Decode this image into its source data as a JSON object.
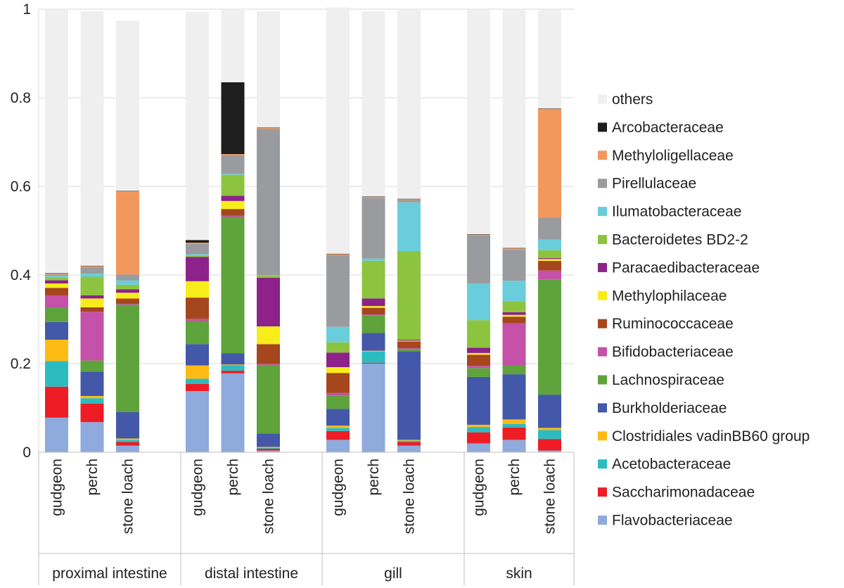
{
  "chart_data": {
    "type": "bar",
    "stacked": true,
    "title": "",
    "xlabel": "",
    "ylabel": "",
    "ylim": [
      0,
      1
    ],
    "yticks": [
      "0",
      "0.2",
      "0.4",
      "0.6",
      "0.8",
      "1"
    ],
    "grid": "horizontal",
    "legend_position": "right",
    "groups": [
      {
        "name": "proximal intestine",
        "categories": [
          "gudgeon",
          "perch",
          "stone loach"
        ]
      },
      {
        "name": "distal intestine",
        "categories": [
          "gudgeon",
          "perch",
          "stone loach"
        ]
      },
      {
        "name": "gill",
        "categories": [
          "gudgeon",
          "perch",
          "stone loach"
        ]
      },
      {
        "name": "skin",
        "categories": [
          "gudgeon",
          "perch",
          "stone loach"
        ]
      }
    ],
    "series": [
      {
        "name": "Flavobacteriaceae",
        "color": "#8faadc",
        "values": [
          0.078,
          0.068,
          0.015,
          0.138,
          0.178,
          0.004,
          0.028,
          0.2,
          0.015,
          0.02,
          0.028,
          0.004
        ]
      },
      {
        "name": "Saccharimonadaceae",
        "color": "#ee1c25",
        "values": [
          0.07,
          0.042,
          0.008,
          0.016,
          0.006,
          0.004,
          0.02,
          0.002,
          0.008,
          0.025,
          0.028,
          0.026
        ]
      },
      {
        "name": "Acetobacteraceae",
        "color": "#2cbcbf",
        "values": [
          0.058,
          0.012,
          0.005,
          0.012,
          0.012,
          0.002,
          0.007,
          0.025,
          0.003,
          0.012,
          0.008,
          0.02
        ]
      },
      {
        "name": "Clostridiales vadinBB60 group",
        "color": "#fdbb13",
        "values": [
          0.048,
          0.005,
          0.003,
          0.03,
          0.002,
          0.002,
          0.005,
          0.002,
          0.002,
          0.005,
          0.01,
          0.005
        ]
      },
      {
        "name": "Burkholderiaceae",
        "color": "#4358a9",
        "values": [
          0.04,
          0.055,
          0.06,
          0.048,
          0.025,
          0.03,
          0.038,
          0.04,
          0.2,
          0.108,
          0.102,
          0.075
        ]
      },
      {
        "name": "Lachnospiraceae",
        "color": "#5ea33b",
        "values": [
          0.033,
          0.025,
          0.242,
          0.052,
          0.308,
          0.155,
          0.03,
          0.04,
          0.005,
          0.02,
          0.02,
          0.26
        ]
      },
      {
        "name": "Bifidobacteriaceae",
        "color": "#c551a8",
        "values": [
          0.027,
          0.11,
          0.002,
          0.005,
          0.003,
          0.002,
          0.006,
          0.002,
          0.002,
          0.005,
          0.095,
          0.02
        ]
      },
      {
        "name": "Ruminococcaceae",
        "color": "#a5461d",
        "values": [
          0.017,
          0.01,
          0.012,
          0.048,
          0.015,
          0.045,
          0.045,
          0.015,
          0.015,
          0.025,
          0.015,
          0.022
        ]
      },
      {
        "name": "Methylophilaceae",
        "color": "#f7ed1a",
        "values": [
          0.01,
          0.02,
          0.013,
          0.037,
          0.018,
          0.04,
          0.013,
          0.004,
          0.002,
          0.004,
          0.004,
          0.004
        ]
      },
      {
        "name": "Paracaedibacteraceae",
        "color": "#8c228a",
        "values": [
          0.007,
          0.007,
          0.008,
          0.055,
          0.012,
          0.11,
          0.033,
          0.017,
          0.002,
          0.012,
          0.006,
          0.002
        ]
      },
      {
        "name": "Bacteroidetes BD2-2",
        "color": "#8cc43f",
        "values": [
          0.007,
          0.042,
          0.01,
          0.003,
          0.047,
          0.005,
          0.023,
          0.085,
          0.2,
          0.062,
          0.025,
          0.018
        ]
      },
      {
        "name": "Ilumatobacteraceae",
        "color": "#6acddb",
        "values": [
          0.003,
          0.007,
          0.01,
          0.003,
          0.002,
          0.001,
          0.035,
          0.005,
          0.11,
          0.083,
          0.046,
          0.024
        ]
      },
      {
        "name": "Pirellulaceae",
        "color": "#9a9b9e",
        "values": [
          0.003,
          0.015,
          0.013,
          0.024,
          0.043,
          0.33,
          0.162,
          0.137,
          0.005,
          0.108,
          0.07,
          0.05
        ]
      },
      {
        "name": "Methyloligellaceae",
        "color": "#f3985d",
        "values": [
          0.002,
          0.002,
          0.188,
          0.002,
          0.002,
          0.002,
          0.002,
          0.002,
          0.002,
          0.002,
          0.003,
          0.245
        ]
      },
      {
        "name": "Arcobacteraceae",
        "color": "#1e1e1e",
        "values": [
          0.001,
          0.001,
          0.001,
          0.006,
          0.162,
          0.001,
          0.001,
          0.001,
          0.001,
          0.001,
          0.001,
          0.001
        ]
      },
      {
        "name": "others",
        "color": "#efeff0",
        "values": [
          0.596,
          0.574,
          0.384,
          0.515,
          0.165,
          0.262,
          0.556,
          0.418,
          0.43,
          0.506,
          0.537,
          0.222
        ]
      }
    ],
    "legend_order": [
      "others",
      "Arcobacteraceae",
      "Methyloligellaceae",
      "Pirellulaceae",
      "Ilumatobacteraceae",
      "Bacteroidetes BD2-2",
      "Paracaedibacteraceae",
      "Methylophilaceae",
      "Ruminococcaceae",
      "Bifidobacteriaceae",
      "Lachnospiraceae",
      "Burkholderiaceae",
      "Clostridiales vadinBB60 group",
      "Acetobacteraceae",
      "Saccharimonadaceae",
      "Flavobacteriaceae"
    ]
  }
}
